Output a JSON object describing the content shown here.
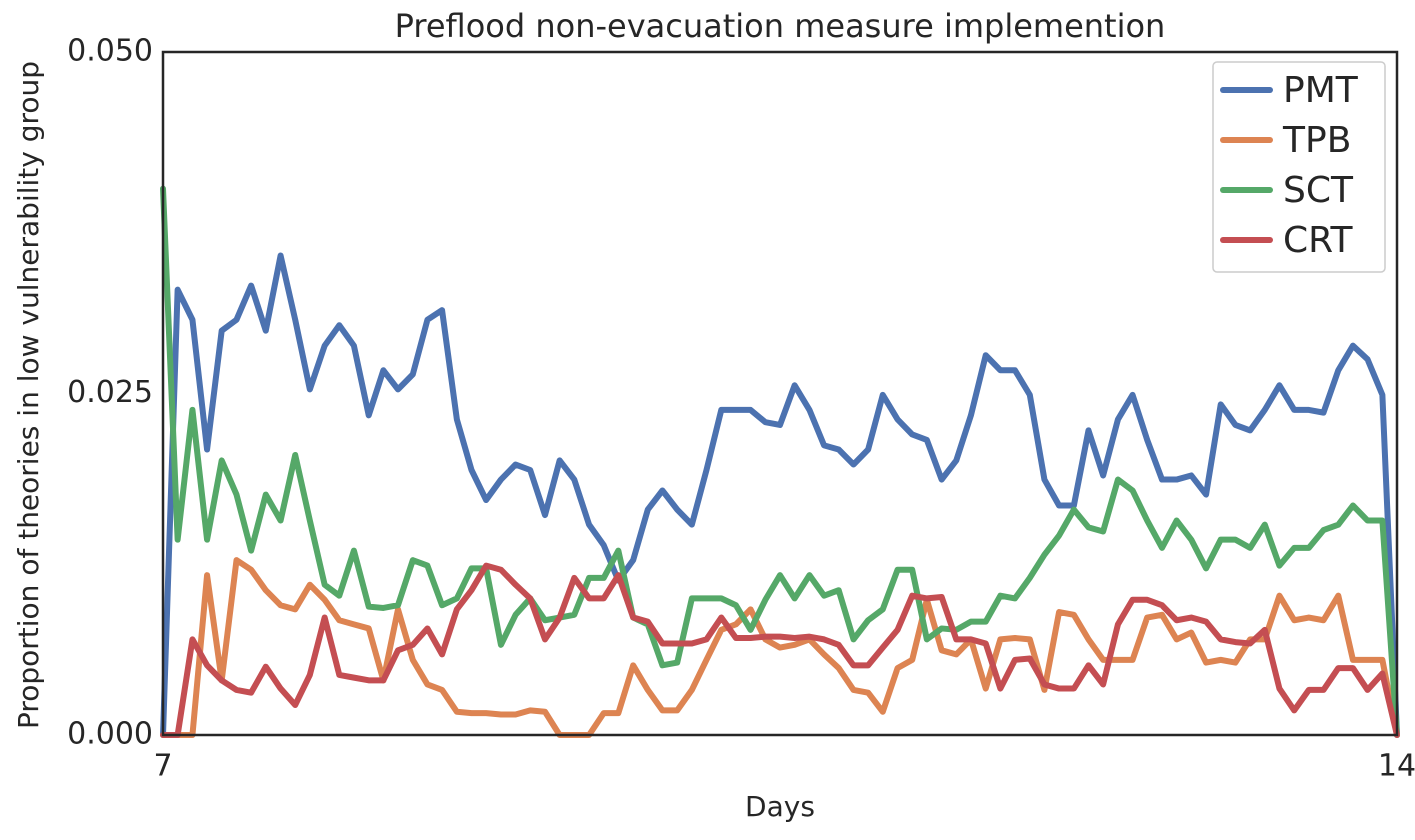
{
  "chart_data": {
    "type": "line",
    "title": "Preflood non-evacuation measure implemention",
    "xlabel": "Days",
    "ylabel": "Proportion of theories in low vulnerability group",
    "x": [
      7,
      7.083,
      7.167,
      7.25,
      7.333,
      7.417,
      7.5,
      7.583,
      7.667,
      7.75,
      7.833,
      7.917,
      8,
      8.083,
      8.167,
      8.25,
      8.333,
      8.417,
      8.5,
      8.583,
      8.667,
      8.75,
      8.833,
      8.917,
      9,
      9.083,
      9.167,
      9.25,
      9.333,
      9.417,
      9.5,
      9.583,
      9.667,
      9.75,
      9.833,
      9.917,
      10,
      10.083,
      10.167,
      10.25,
      10.333,
      10.417,
      10.5,
      10.583,
      10.667,
      10.75,
      10.833,
      10.917,
      11,
      11.083,
      11.167,
      11.25,
      11.333,
      11.417,
      11.5,
      11.583,
      11.667,
      11.75,
      11.833,
      11.917,
      12,
      12.083,
      12.167,
      12.25,
      12.333,
      12.417,
      12.5,
      12.583,
      12.667,
      12.75,
      12.833,
      12.917,
      13,
      13.083,
      13.167,
      13.25,
      13.333,
      13.417,
      13.5,
      13.583,
      13.667,
      13.75,
      13.833,
      13.917,
      14
    ],
    "series": [
      {
        "name": "PMT",
        "color": "#4c72b0",
        "values": [
          0,
          0.0326,
          0.0304,
          0.0209,
          0.0296,
          0.0304,
          0.0329,
          0.0296,
          0.0351,
          0.0304,
          0.0253,
          0.0285,
          0.03,
          0.0285,
          0.0234,
          0.0267,
          0.0253,
          0.0264,
          0.0304,
          0.0311,
          0.0231,
          0.0194,
          0.0172,
          0.0187,
          0.0198,
          0.0194,
          0.0161,
          0.0201,
          0.0187,
          0.0154,
          0.0139,
          0.0113,
          0.0128,
          0.0165,
          0.0179,
          0.0165,
          0.0154,
          0.0194,
          0.0238,
          0.0238,
          0.0238,
          0.0229,
          0.0227,
          0.0256,
          0.0238,
          0.0212,
          0.0209,
          0.0198,
          0.0209,
          0.0249,
          0.0231,
          0.022,
          0.0216,
          0.0187,
          0.0201,
          0.0234,
          0.0278,
          0.0267,
          0.0267,
          0.0249,
          0.0187,
          0.0168,
          0.0168,
          0.0223,
          0.019,
          0.0231,
          0.0249,
          0.0216,
          0.0187,
          0.0187,
          0.019,
          0.0176,
          0.0242,
          0.0227,
          0.0223,
          0.0238,
          0.0256,
          0.0238,
          0.0238,
          0.0236,
          0.0267,
          0.0285,
          0.0275,
          0.0249,
          0
        ]
      },
      {
        "name": "TPB",
        "color": "#dd8452",
        "values": [
          0,
          0,
          0,
          0.0117,
          0.004,
          0.0128,
          0.0121,
          0.0106,
          0.0095,
          0.0092,
          0.011,
          0.0099,
          0.0084,
          0.0081,
          0.0078,
          0.004,
          0.0092,
          0.0055,
          0.0037,
          0.0033,
          0.0017,
          0.0016,
          0.0016,
          0.0015,
          0.0015,
          0.0018,
          0.0017,
          0,
          0,
          0,
          0.0016,
          0.0016,
          0.0051,
          0.0033,
          0.0018,
          0.0018,
          0.0033,
          0.0055,
          0.0077,
          0.0081,
          0.0092,
          0.007,
          0.0064,
          0.0066,
          0.007,
          0.0059,
          0.0049,
          0.0033,
          0.0031,
          0.0017,
          0.0049,
          0.0055,
          0.0099,
          0.0062,
          0.0059,
          0.007,
          0.0034,
          0.007,
          0.0071,
          0.007,
          0.0033,
          0.009,
          0.0088,
          0.007,
          0.0055,
          0.0055,
          0.0055,
          0.0086,
          0.0088,
          0.007,
          0.0075,
          0.0053,
          0.0055,
          0.0053,
          0.007,
          0.007,
          0.0102,
          0.0084,
          0.0086,
          0.0084,
          0.0102,
          0.0055,
          0.0055,
          0.0055,
          0
        ]
      },
      {
        "name": "SCT",
        "color": "#55a868",
        "values": [
          0.04,
          0.0143,
          0.0238,
          0.0143,
          0.0201,
          0.0176,
          0.0135,
          0.0176,
          0.0157,
          0.0205,
          0.0157,
          0.011,
          0.0102,
          0.0135,
          0.0094,
          0.0093,
          0.0095,
          0.0128,
          0.0124,
          0.0095,
          0.01,
          0.0122,
          0.0122,
          0.0066,
          0.0088,
          0.01,
          0.0084,
          0.0086,
          0.0088,
          0.0115,
          0.0115,
          0.0135,
          0.0086,
          0.0081,
          0.0051,
          0.0053,
          0.01,
          0.01,
          0.01,
          0.0095,
          0.0077,
          0.0099,
          0.0117,
          0.01,
          0.0117,
          0.0102,
          0.0106,
          0.007,
          0.0084,
          0.0092,
          0.0121,
          0.0121,
          0.007,
          0.0078,
          0.0077,
          0.0083,
          0.0083,
          0.0102,
          0.01,
          0.0115,
          0.0132,
          0.0146,
          0.0165,
          0.0152,
          0.0149,
          0.0187,
          0.0179,
          0.0157,
          0.0137,
          0.0157,
          0.0143,
          0.0122,
          0.0143,
          0.0143,
          0.0137,
          0.0154,
          0.0124,
          0.0137,
          0.0137,
          0.015,
          0.0154,
          0.0168,
          0.0157,
          0.0157,
          0
        ]
      },
      {
        "name": "CRT",
        "color": "#c44e52",
        "values": [
          0,
          0,
          0.007,
          0.0051,
          0.004,
          0.0033,
          0.0031,
          0.005,
          0.0034,
          0.0022,
          0.0044,
          0.0086,
          0.0044,
          0.0042,
          0.004,
          0.004,
          0.0062,
          0.0066,
          0.0078,
          0.0059,
          0.0092,
          0.0106,
          0.0124,
          0.0121,
          0.011,
          0.01,
          0.007,
          0.0086,
          0.0115,
          0.01,
          0.01,
          0.0117,
          0.0086,
          0.0083,
          0.0067,
          0.0067,
          0.0067,
          0.007,
          0.0086,
          0.0071,
          0.0071,
          0.0072,
          0.0072,
          0.0071,
          0.0072,
          0.007,
          0.0066,
          0.0051,
          0.0051,
          0.0064,
          0.0077,
          0.0102,
          0.01,
          0.0101,
          0.007,
          0.007,
          0.0067,
          0.0034,
          0.0055,
          0.0056,
          0.0037,
          0.0034,
          0.0034,
          0.0051,
          0.0037,
          0.0081,
          0.0099,
          0.0099,
          0.0095,
          0.0084,
          0.0086,
          0.0083,
          0.007,
          0.0068,
          0.0067,
          0.0077,
          0.0034,
          0.0018,
          0.0033,
          0.0033,
          0.0049,
          0.0049,
          0.0033,
          0.0045,
          0
        ]
      }
    ],
    "xlim": [
      7,
      14
    ],
    "xticks": [
      7,
      14
    ],
    "ylim": [
      0,
      0.05
    ],
    "yticks": [
      {
        "value": 0,
        "label": "0.000"
      },
      {
        "value": 0.025,
        "label": "0.025"
      },
      {
        "value": 0.05,
        "label": "0.050"
      }
    ],
    "grid": false,
    "legend": "upper right"
  }
}
